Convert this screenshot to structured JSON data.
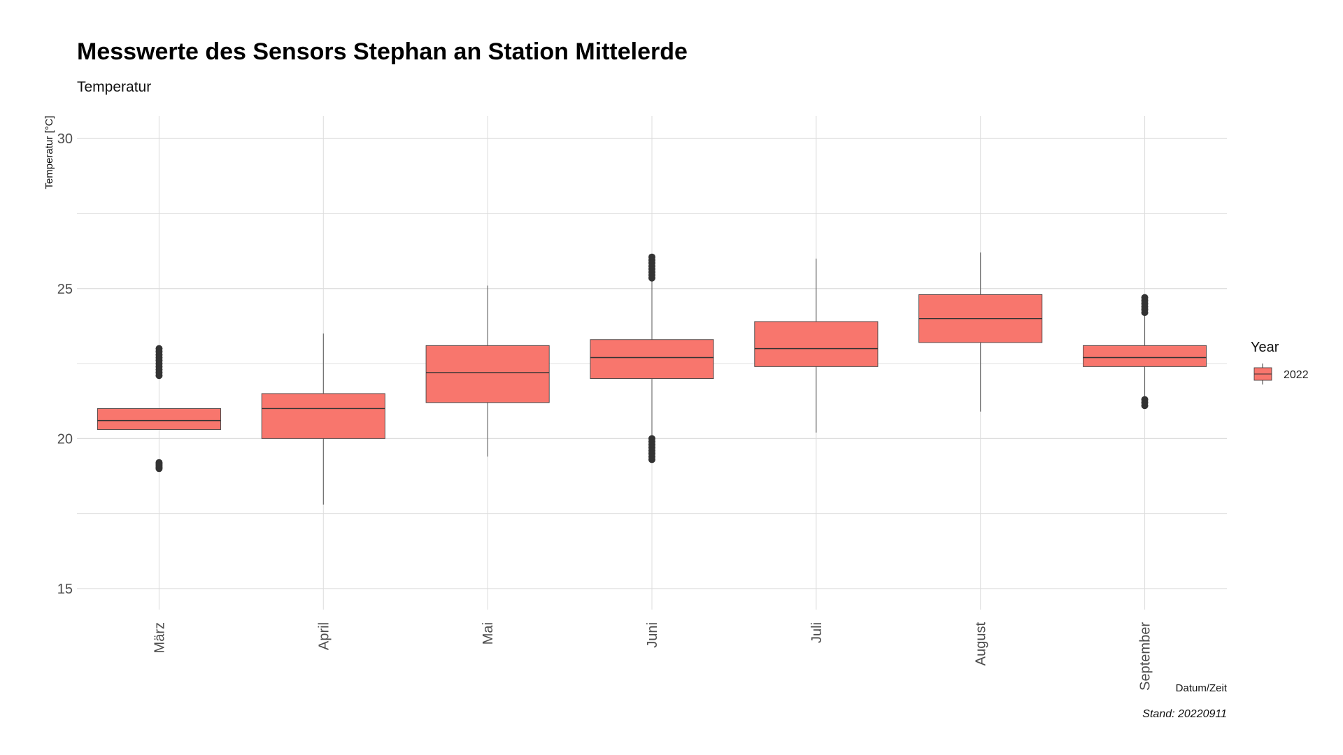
{
  "chart_data": {
    "type": "boxplot",
    "title": "Messwerte des Sensors Stephan an Station Mittelerde",
    "subtitle": "Temperatur",
    "xlabel": "Datum/Zeit",
    "ylabel": "Temperatur [°C]",
    "caption": "Stand: 20220911",
    "ylim": [
      14.3,
      30.75
    ],
    "yticks": [
      15,
      20,
      25,
      30
    ],
    "grid": true,
    "legend": {
      "title": "Year",
      "position": "right",
      "entries": [
        "2022"
      ]
    },
    "categories": [
      "März",
      "April",
      "Mai",
      "Juni",
      "Juli",
      "August",
      "September"
    ],
    "series": [
      {
        "name": "2022",
        "color": "#F8766D",
        "boxes": [
          {
            "whisker_low": 20.3,
            "q1": 20.3,
            "median": 20.6,
            "q3": 21.0,
            "whisker_high": 21.0,
            "outliers": [
              19.0,
              19.05,
              19.1,
              19.15,
              19.2,
              22.1,
              22.2,
              22.3,
              22.4,
              22.5,
              22.6,
              22.7,
              22.8,
              22.9,
              23.0
            ]
          },
          {
            "whisker_low": 17.8,
            "q1": 20.0,
            "median": 21.0,
            "q3": 21.5,
            "whisker_high": 23.5,
            "outliers": []
          },
          {
            "whisker_low": 19.4,
            "q1": 21.2,
            "median": 22.2,
            "q3": 23.1,
            "whisker_high": 25.1,
            "outliers": []
          },
          {
            "whisker_low": 20.0,
            "q1": 22.0,
            "median": 22.7,
            "q3": 23.3,
            "whisker_high": 25.3,
            "outliers": [
              19.3,
              19.4,
              19.5,
              19.6,
              19.7,
              19.8,
              19.9,
              20.0,
              25.35,
              25.45,
              25.55,
              25.65,
              25.75,
              25.85,
              25.95,
              26.05
            ]
          },
          {
            "whisker_low": 20.2,
            "q1": 22.4,
            "median": 23.0,
            "q3": 23.9,
            "whisker_high": 26.0,
            "outliers": []
          },
          {
            "whisker_low": 20.9,
            "q1": 23.2,
            "median": 24.0,
            "q3": 24.8,
            "whisker_high": 26.2,
            "outliers": []
          },
          {
            "whisker_low": 21.4,
            "q1": 22.4,
            "median": 22.7,
            "q3": 23.1,
            "whisker_high": 24.1,
            "outliers": [
              21.1,
              21.2,
              21.3,
              24.2,
              24.3,
              24.4,
              24.5,
              24.6,
              24.7
            ]
          }
        ]
      }
    ]
  }
}
